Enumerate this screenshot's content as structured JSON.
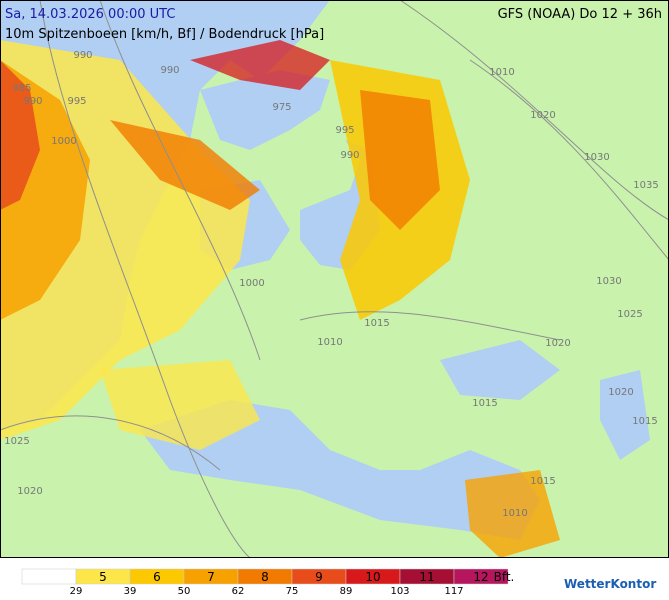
{
  "header": {
    "title": "Sa, 14.03.2026 00:00 UTC",
    "subtitle": "10m Spitzenboeen [km/h, Bf] / Bodendruck [hPa]",
    "model": "GFS (NOAA) Do 12 + 36h"
  },
  "isobar_labels": [
    "990",
    "990",
    "985",
    "990",
    "995",
    "975",
    "1000",
    "995",
    "990",
    "1010",
    "1020",
    "1030",
    "1035",
    "1030",
    "1025",
    "1000",
    "1015",
    "1010",
    "1020",
    "1015",
    "1020",
    "1015",
    "1025",
    "1020",
    "1015",
    "1010"
  ],
  "legend": {
    "colors": [
      "#ffffff",
      "#fde64a",
      "#fcc800",
      "#f7a100",
      "#f27a00",
      "#e84c1b",
      "#d7191c",
      "#a50f34",
      "#b5165e"
    ],
    "bft": [
      "",
      "5",
      "6",
      "7",
      "8",
      "9",
      "10",
      "11",
      "12"
    ],
    "kmh": [
      "29",
      "39",
      "50",
      "62",
      "75",
      "89",
      "103",
      "117"
    ],
    "unit": "Bft."
  },
  "logo": "WetterKontor"
}
